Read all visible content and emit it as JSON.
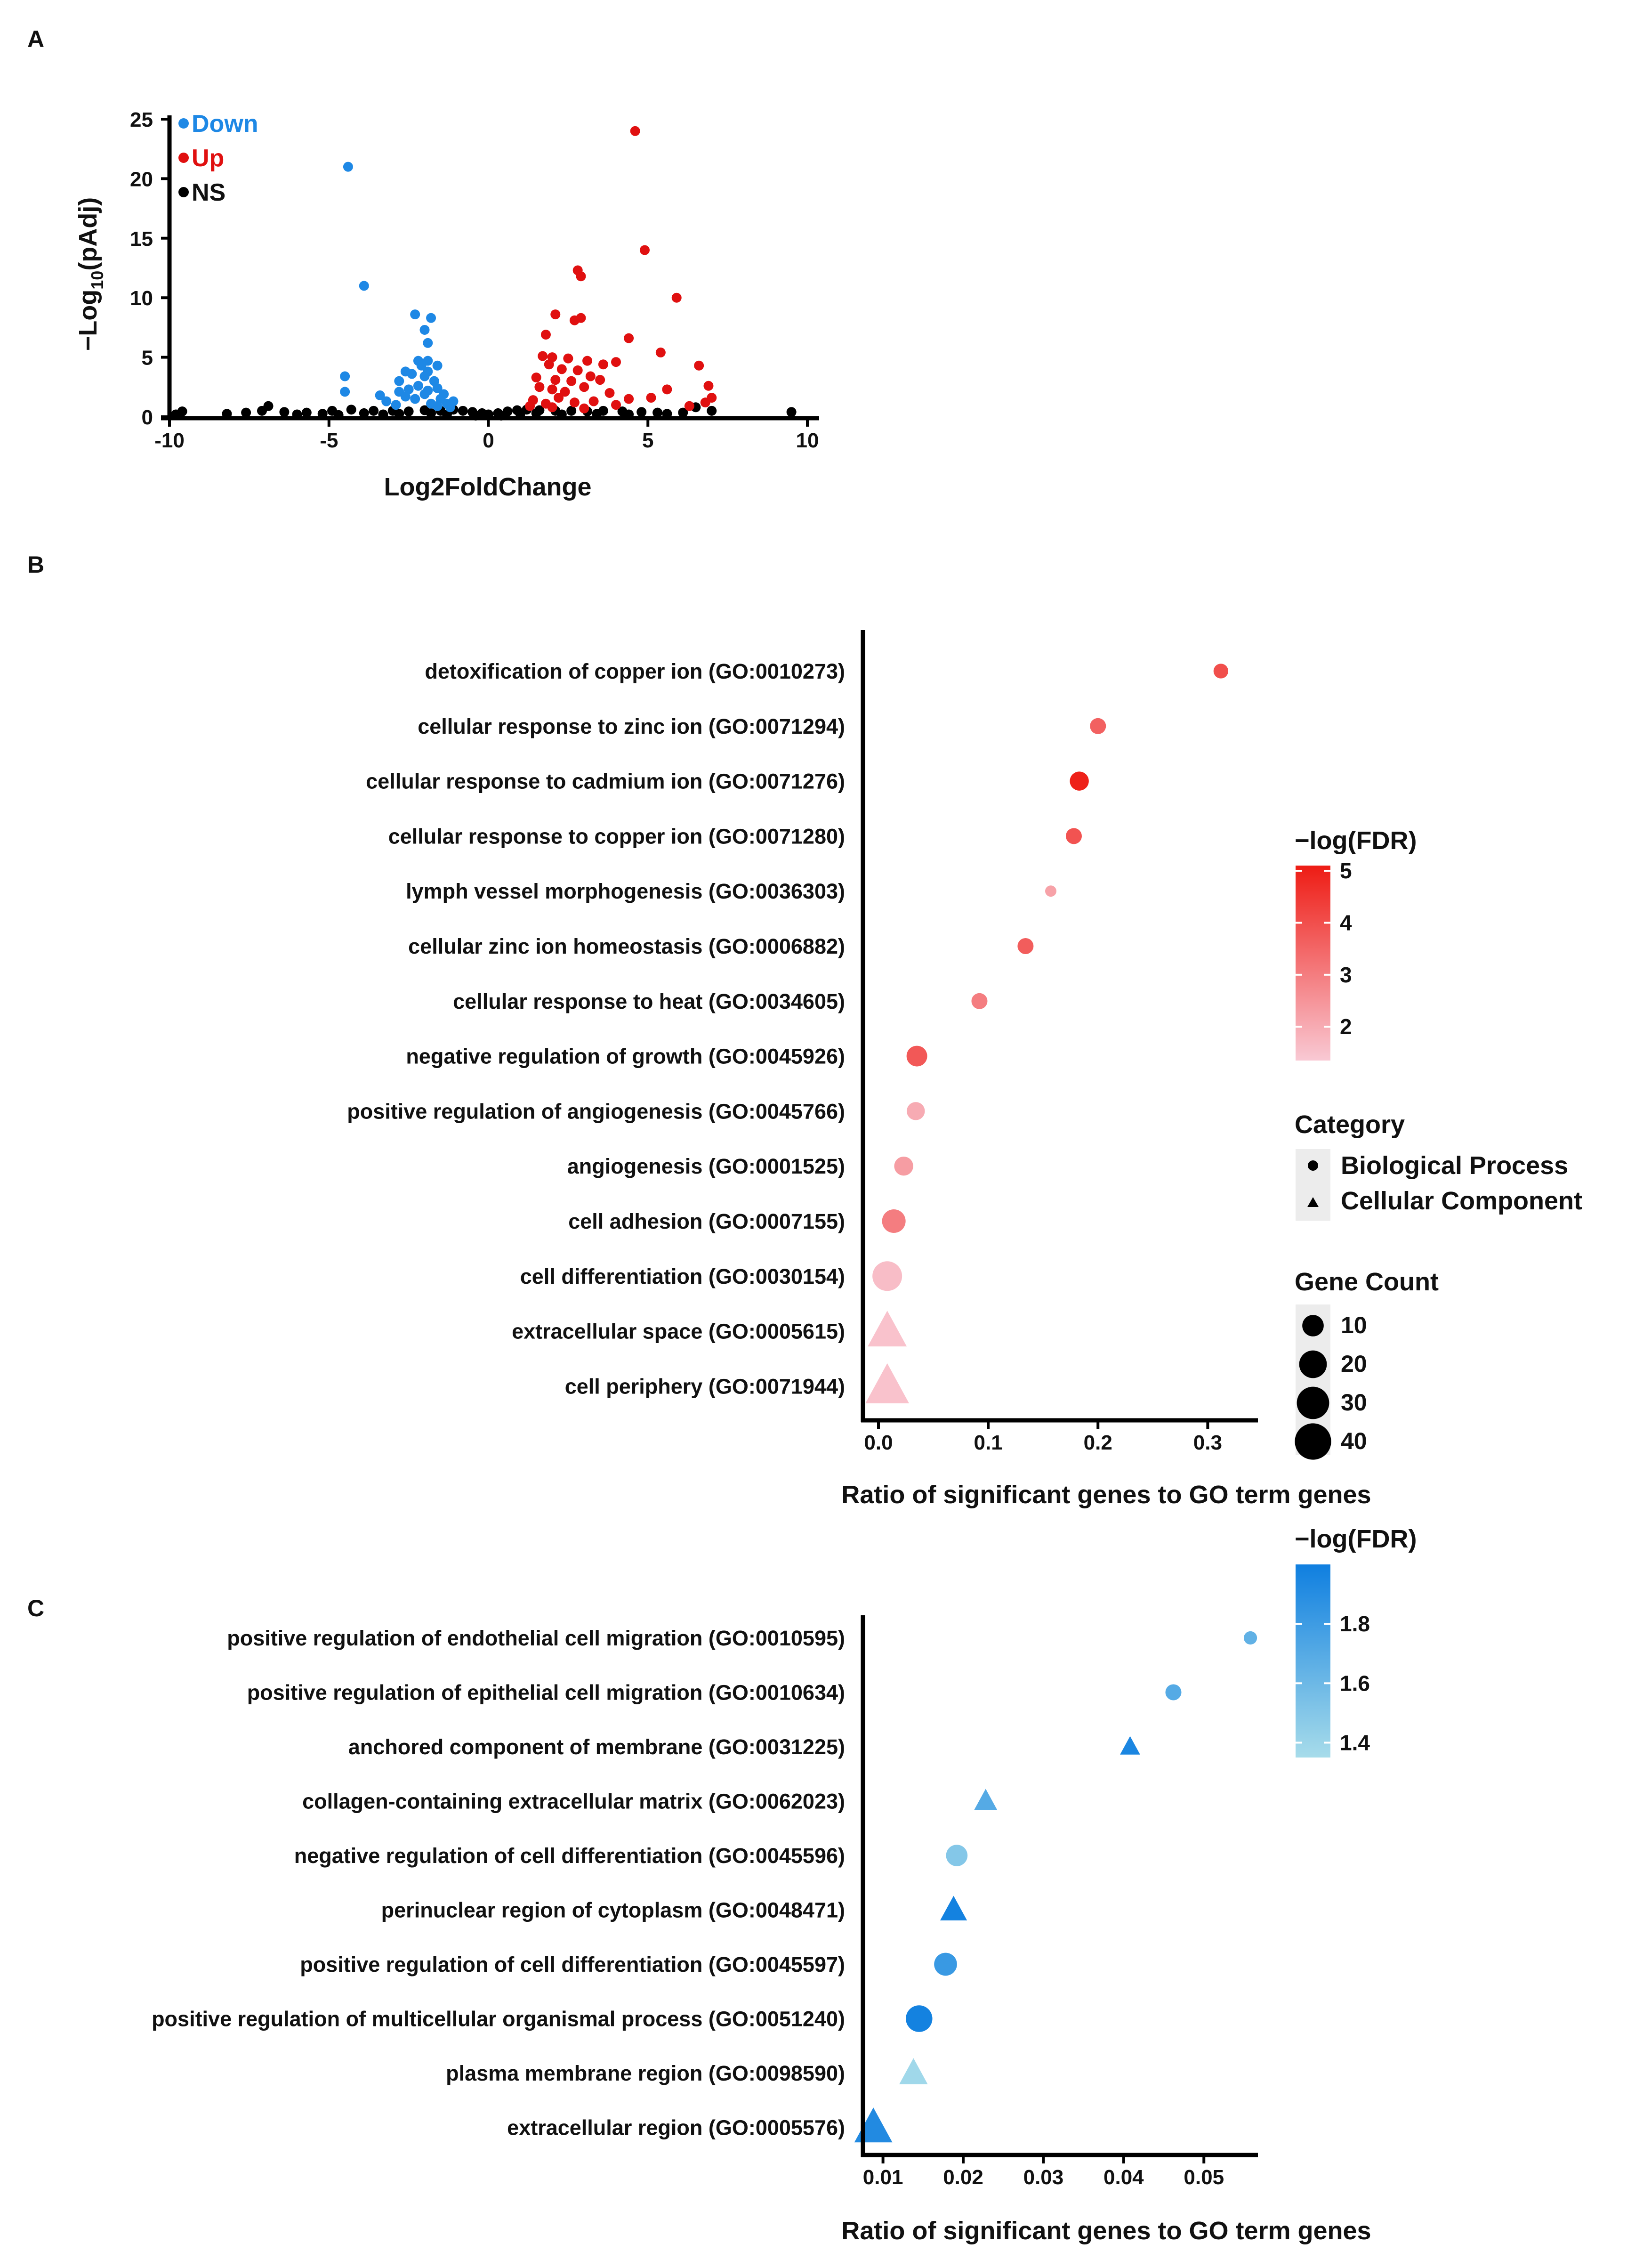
{
  "panels": {
    "a": {
      "letter": "A"
    },
    "b": {
      "letter": "B"
    },
    "c": {
      "letter": "C"
    }
  },
  "chart_data": [
    {
      "panel": "A",
      "type": "scatter",
      "xlabel": "Log2FoldChange",
      "ylabel": "−Log10(pAdj)",
      "ylabel_parts": {
        "main": "−Log",
        "sub": "10",
        "rest": "(pAdj)"
      },
      "xlim": [
        -10,
        10
      ],
      "ylim": [
        0,
        25
      ],
      "xticks": [
        -10,
        -5,
        0,
        5,
        10
      ],
      "yticks": [
        0,
        5,
        10,
        15,
        20,
        25
      ],
      "grid": false,
      "legend_position": "top-left",
      "series": [
        {
          "name": "Down",
          "color": "#1e88e5",
          "points": [
            [
              -4.4,
              21.0
            ],
            [
              -3.9,
              11.0
            ],
            [
              -2.3,
              8.6
            ],
            [
              -1.8,
              8.3
            ],
            [
              -2.0,
              7.3
            ],
            [
              -1.9,
              6.2
            ],
            [
              -4.5,
              3.4
            ],
            [
              -4.5,
              2.1
            ],
            [
              -3.4,
              1.8
            ],
            [
              -2.6,
              3.8
            ],
            [
              -2.8,
              3.0
            ],
            [
              -2.2,
              4.7
            ],
            [
              -1.9,
              4.7
            ],
            [
              -2.1,
              4.3
            ],
            [
              -1.6,
              4.3
            ],
            [
              -1.9,
              3.8
            ],
            [
              -2.4,
              3.6
            ],
            [
              -2.0,
              3.4
            ],
            [
              -1.7,
              3.0
            ],
            [
              -2.5,
              2.3
            ],
            [
              -2.2,
              2.6
            ],
            [
              -1.9,
              2.2
            ],
            [
              -1.6,
              2.4
            ],
            [
              -2.0,
              1.9
            ],
            [
              -1.4,
              1.9
            ],
            [
              -1.5,
              1.5
            ],
            [
              -2.6,
              1.7
            ],
            [
              -2.8,
              2.1
            ],
            [
              -1.3,
              1.1
            ],
            [
              -1.2,
              0.8
            ],
            [
              -3.2,
              1.3
            ],
            [
              -2.3,
              1.5
            ],
            [
              -1.8,
              1.1
            ],
            [
              -1.1,
              1.3
            ],
            [
              -2.9,
              1.0
            ],
            [
              -1.6,
              0.9
            ]
          ]
        },
        {
          "name": "Up",
          "color": "#e01010",
          "points": [
            [
              4.6,
              24.0
            ],
            [
              4.9,
              14.0
            ],
            [
              2.8,
              12.3
            ],
            [
              2.9,
              11.8
            ],
            [
              5.9,
              10.0
            ],
            [
              2.1,
              8.6
            ],
            [
              2.7,
              8.1
            ],
            [
              2.9,
              8.3
            ],
            [
              1.8,
              6.9
            ],
            [
              4.4,
              6.6
            ],
            [
              1.7,
              5.1
            ],
            [
              5.4,
              5.4
            ],
            [
              2.0,
              5.0
            ],
            [
              2.5,
              4.9
            ],
            [
              3.1,
              4.7
            ],
            [
              3.6,
              4.4
            ],
            [
              4.0,
              4.6
            ],
            [
              1.9,
              4.4
            ],
            [
              2.3,
              4.0
            ],
            [
              2.8,
              3.9
            ],
            [
              3.2,
              3.4
            ],
            [
              6.6,
              4.3
            ],
            [
              1.5,
              3.3
            ],
            [
              2.1,
              3.1
            ],
            [
              2.6,
              3.0
            ],
            [
              3.5,
              3.1
            ],
            [
              5.1,
              1.6
            ],
            [
              5.6,
              2.3
            ],
            [
              6.9,
              2.6
            ],
            [
              1.6,
              2.5
            ],
            [
              2.0,
              2.3
            ],
            [
              2.4,
              2.1
            ],
            [
              3.0,
              2.5
            ],
            [
              3.8,
              2.0
            ],
            [
              7.0,
              1.6
            ],
            [
              6.8,
              1.2
            ],
            [
              4.4,
              1.5
            ],
            [
              2.2,
              1.6
            ],
            [
              3.3,
              1.3
            ],
            [
              1.4,
              1.4
            ],
            [
              1.8,
              1.1
            ],
            [
              2.7,
              1.2
            ],
            [
              4.0,
              1.0
            ],
            [
              1.3,
              0.9
            ],
            [
              2.0,
              0.8
            ],
            [
              3.0,
              0.7
            ],
            [
              6.3,
              0.9
            ]
          ]
        },
        {
          "name": "NS",
          "color": "#000000",
          "points": [
            [
              -9.6,
              0.45
            ],
            [
              -8.2,
              0.25
            ],
            [
              -7.1,
              0.5
            ],
            [
              -6.4,
              0.4
            ],
            [
              -5.7,
              0.35
            ],
            [
              -4.9,
              0.5
            ],
            [
              -4.3,
              0.6
            ],
            [
              -3.6,
              0.5
            ],
            [
              -3.0,
              0.5
            ],
            [
              -2.5,
              0.45
            ],
            [
              -2.0,
              0.55
            ],
            [
              -1.5,
              0.5
            ],
            [
              -1.1,
              0.6
            ],
            [
              -0.8,
              0.5
            ],
            [
              -0.5,
              0.4
            ],
            [
              -0.2,
              0.3
            ],
            [
              0.0,
              0.2
            ],
            [
              0.3,
              0.3
            ],
            [
              0.6,
              0.45
            ],
            [
              0.9,
              0.55
            ],
            [
              1.2,
              0.6
            ],
            [
              1.6,
              0.55
            ],
            [
              2.1,
              0.5
            ],
            [
              2.6,
              0.5
            ],
            [
              3.1,
              0.45
            ],
            [
              3.6,
              0.5
            ],
            [
              4.2,
              0.45
            ],
            [
              4.8,
              0.4
            ],
            [
              5.3,
              0.35
            ],
            [
              6.1,
              0.35
            ],
            [
              6.5,
              0.8
            ],
            [
              7.0,
              0.5
            ],
            [
              9.5,
              0.4
            ],
            [
              -9.8,
              0.2
            ],
            [
              -6.9,
              0.9
            ],
            [
              -5.2,
              0.25
            ],
            [
              -4.7,
              0.15
            ],
            [
              -3.9,
              0.3
            ],
            [
              -3.3,
              0.2
            ],
            [
              -2.8,
              0.25
            ],
            [
              -1.8,
              0.3
            ],
            [
              -1.3,
              0.2
            ],
            [
              1.0,
              0.25
            ],
            [
              1.5,
              0.3
            ],
            [
              2.3,
              0.2
            ],
            [
              3.4,
              0.25
            ],
            [
              4.4,
              0.2
            ],
            [
              5.6,
              0.25
            ],
            [
              -7.6,
              0.35
            ],
            [
              -6.0,
              0.2
            ],
            [
              0.4,
              0.1
            ],
            [
              -0.4,
              0.1
            ]
          ]
        }
      ]
    },
    {
      "panel": "B",
      "type": "scatter",
      "xlabel": "Ratio of significant genes to GO term genes",
      "xlim": [
        0,
        0.32
      ],
      "xticks": [
        0.0,
        0.1,
        0.2,
        0.3
      ],
      "xtick_labels": [
        "0.0",
        "0.1",
        "0.2",
        "0.3"
      ],
      "grid": false,
      "terms": [
        {
          "label": "detoxification of copper ion (GO:0010273)",
          "x": 0.312,
          "fdr": 4.0,
          "count": 3,
          "category": "Biological Process"
        },
        {
          "label": "cellular response to zinc ion (GO:0071294)",
          "x": 0.2,
          "fdr": 3.6,
          "count": 4,
          "category": "Biological Process"
        },
        {
          "label": "cellular response to cadmium ion (GO:0071276)",
          "x": 0.183,
          "fdr": 5.0,
          "count": 7,
          "category": "Biological Process"
        },
        {
          "label": "cellular response to copper ion (GO:0071280)",
          "x": 0.178,
          "fdr": 3.9,
          "count": 4,
          "category": "Biological Process"
        },
        {
          "label": "lymph vessel morphogenesis (GO:0036303)",
          "x": 0.157,
          "fdr": 2.2,
          "count": 1,
          "category": "Biological Process"
        },
        {
          "label": "cellular zinc ion homeostasis (GO:0006882)",
          "x": 0.134,
          "fdr": 3.7,
          "count": 4,
          "category": "Biological Process"
        },
        {
          "label": "cellular response to heat (GO:0034605)",
          "x": 0.092,
          "fdr": 3.0,
          "count": 4,
          "category": "Biological Process"
        },
        {
          "label": "negative regulation of growth (GO:0045926)",
          "x": 0.035,
          "fdr": 3.8,
          "count": 9,
          "category": "Biological Process"
        },
        {
          "label": "positive regulation of angiogenesis (GO:0045766)",
          "x": 0.034,
          "fdr": 2.0,
          "count": 6,
          "category": "Biological Process"
        },
        {
          "label": "angiogenesis (GO:0001525)",
          "x": 0.023,
          "fdr": 2.3,
          "count": 7,
          "category": "Biological Process"
        },
        {
          "label": "cell adhesion (GO:0007155)",
          "x": 0.014,
          "fdr": 3.0,
          "count": 13,
          "category": "Biological Process"
        },
        {
          "label": "cell differentiation (GO:0030154)",
          "x": 0.008,
          "fdr": 1.6,
          "count": 24,
          "category": "Biological Process"
        },
        {
          "label": "extracellular space (GO:0005615)",
          "x": 0.008,
          "fdr": 1.5,
          "count": 32,
          "category": "Cellular Component"
        },
        {
          "label": "cell periphery (GO:0071944)",
          "x": 0.008,
          "fdr": 1.5,
          "count": 42,
          "category": "Cellular Component"
        }
      ],
      "color_legend": {
        "title": "−log(FDR)",
        "range": [
          1.35,
          5.1
        ],
        "ticks": [
          2,
          3,
          4,
          5
        ],
        "tick_labels": [
          "2",
          "3",
          "4",
          "5"
        ],
        "color_low": "#f9c9d4",
        "color_high": "#ee1c14"
      },
      "shape_legend": {
        "title": "Category",
        "items": [
          "Biological Process",
          "Cellular Component"
        ]
      },
      "size_legend": {
        "title": "Gene Count",
        "values": [
          10,
          20,
          30,
          40
        ],
        "labels": [
          "10",
          "20",
          "30",
          "40"
        ]
      }
    },
    {
      "panel": "C",
      "type": "scatter",
      "xlabel": "Ratio of significant genes to GO term genes",
      "xlim": [
        0.0075,
        0.0565
      ],
      "xticks": [
        0.01,
        0.02,
        0.03,
        0.04,
        0.05
      ],
      "xtick_labels": [
        "0.01",
        "0.02",
        "0.03",
        "0.04",
        "0.05"
      ],
      "grid": false,
      "terms": [
        {
          "label": "positive regulation of endothelial cell migration (GO:0010595)",
          "x": 0.0558,
          "fdr": 1.65,
          "count": 2,
          "category": "Biological Process"
        },
        {
          "label": "positive regulation of epithelial cell migration (GO:0010634)",
          "x": 0.0462,
          "fdr": 1.7,
          "count": 4,
          "category": "Biological Process"
        },
        {
          "label": "anchored component of membrane (GO:0031225)",
          "x": 0.0408,
          "fdr": 1.95,
          "count": 5,
          "category": "Cellular Component"
        },
        {
          "label": "collagen-containing extracellular matrix (GO:0062023)",
          "x": 0.0228,
          "fdr": 1.7,
          "count": 8,
          "category": "Cellular Component"
        },
        {
          "label": "negative regulation of cell differentiation (GO:0045596)",
          "x": 0.0192,
          "fdr": 1.5,
          "count": 10,
          "category": "Biological Process"
        },
        {
          "label": "perinuclear region of cytoplasm (GO:0048471)",
          "x": 0.0188,
          "fdr": 1.98,
          "count": 12,
          "category": "Cellular Component"
        },
        {
          "label": "positive regulation of cell differentiation (GO:0045597)",
          "x": 0.0178,
          "fdr": 1.82,
          "count": 12,
          "category": "Biological Process"
        },
        {
          "label": "positive regulation of multicellular organismal process (GO:0051240)",
          "x": 0.0145,
          "fdr": 1.98,
          "count": 18,
          "category": "Biological Process"
        },
        {
          "label": "plasma membrane region (GO:0098590)",
          "x": 0.0138,
          "fdr": 1.38,
          "count": 14,
          "category": "Cellular Component"
        },
        {
          "label": "extracellular region (GO:0005576)",
          "x": 0.0088,
          "fdr": 1.92,
          "count": 30,
          "category": "Cellular Component"
        }
      ],
      "color_legend": {
        "title": "−log(FDR)",
        "range": [
          1.35,
          2.0
        ],
        "ticks": [
          1.4,
          1.6,
          1.8
        ],
        "tick_labels": [
          "1.4",
          "1.6",
          "1.8"
        ],
        "color_low": "#a7dcea",
        "color_high": "#0f7fe0"
      }
    }
  ]
}
